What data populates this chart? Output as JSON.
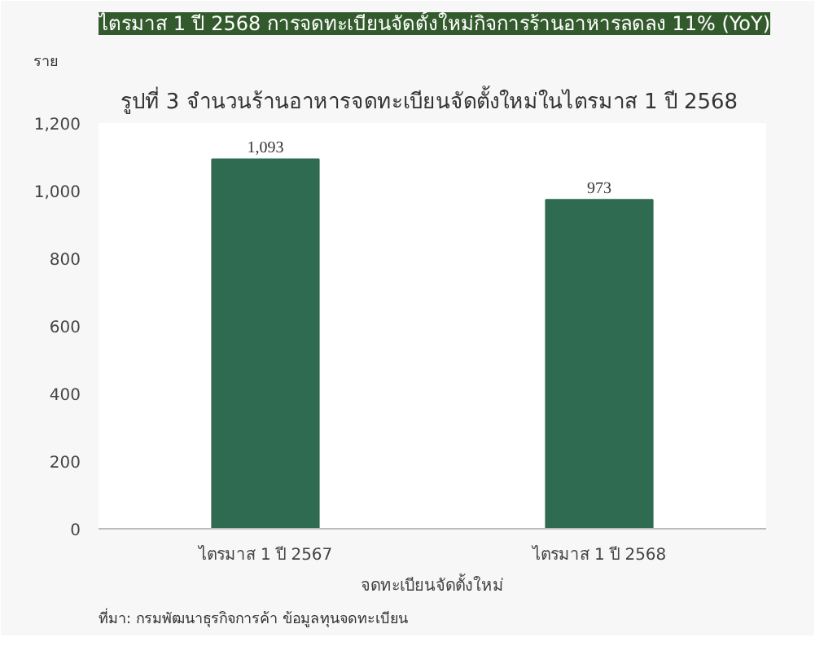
{
  "chart_data": {
    "type": "bar",
    "title": "ไตรมาส 1 ปี 2568 การจดทะเบียนจัดตั้งใหม่กิจการร้านอาหารลดลง 11% (YoY)",
    "subtitle": "รูปที่  3 จำนวนร้านอาหารจดทะเบียนจัดตั้งใหม่ในไตรมาส 1 ปี 2568",
    "ylabel": "ราย",
    "xlabel": "จดทะเบียนจัดตั้งใหม่",
    "categories": [
      "ไตรมาส 1 ปี 2567",
      "ไตรมาส 1 ปี 2568"
    ],
    "values": [
      1093,
      973
    ],
    "value_labels": [
      "1,093",
      "973"
    ],
    "color": "#2e6b50",
    "ylim": [
      0,
      1200
    ],
    "yticks": [
      0,
      200,
      400,
      600,
      800,
      {
        "value": 1000,
        "label": "1,000"
      },
      {
        "value": 1200,
        "label": "1,200"
      }
    ],
    "grid": false,
    "annotations": [
      "ที่มา:   กรมพัฒนาธุรกิจการค้า ข้อมูลทุนจดทะเบียน"
    ]
  }
}
